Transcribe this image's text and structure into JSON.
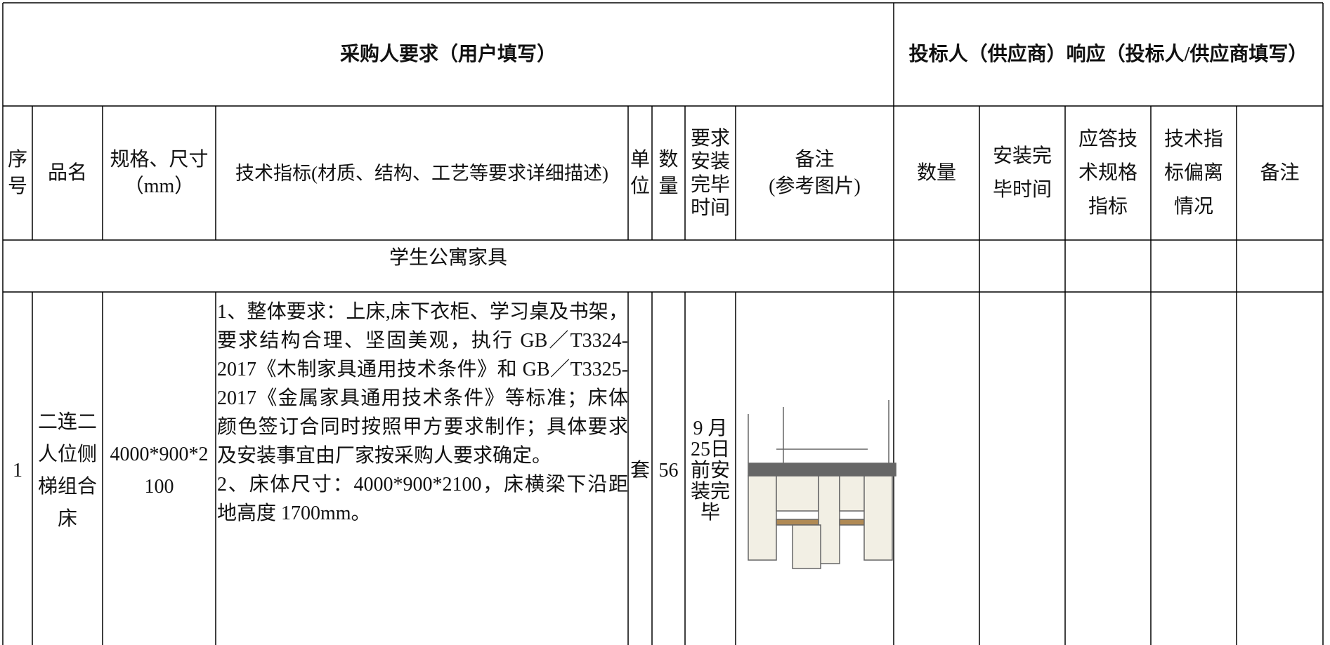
{
  "header": {
    "buyer": "采购人要求（用户填写）",
    "bidder": "投标人（供应商）响应（投标人/供应商填写）"
  },
  "columns": {
    "no": "序号",
    "name": "品名",
    "spec": "规格、尺寸（mm）",
    "tech": "技术指标(材质、结构、工艺等要求详细描述)",
    "unit": "单位",
    "qty": "数量",
    "time": "要求安装完毕时间",
    "remark": [
      "备注",
      "(参考图片)"
    ],
    "bid_qty": "数量",
    "bid_time": "安装完毕时间",
    "bid_spec": "应答技术规格指标",
    "bid_dev": "技术指标偏离情况",
    "bid_remark": "备注"
  },
  "section": "学生公寓家具",
  "rows": [
    {
      "no": "1",
      "name": "二连二人位侧梯组合床",
      "spec": "4000*900*2100",
      "tech": [
        "1、整体要求：上床,床下衣柜、学习桌及书架，要求结构合理、坚固美观，执行 GB／T3324-2017《木制家具通用技术条件》和 GB／T3325-2017《金属家具通用技术条件》等标准；床体颜色签订合同时按照甲方要求制作；具体要求及安装事宜由厂家按采购人要求确定。",
        "2、床体尺寸：4000*900*2100，床横梁下沿距地高度 1700mm。"
      ],
      "unit": "套",
      "qty": "56",
      "time": "9 月25日前安装完毕"
    }
  ]
}
